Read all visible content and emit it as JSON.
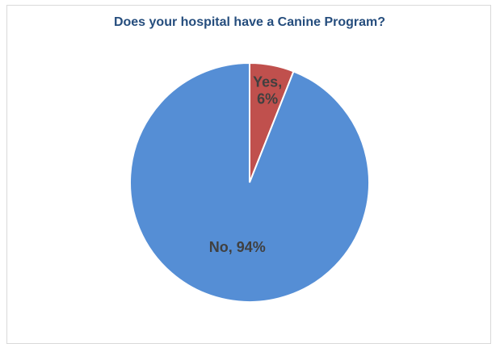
{
  "chart_data": {
    "type": "pie",
    "title": "Does your hospital have a Canine Program?",
    "categories": [
      "Yes",
      "No"
    ],
    "values": [
      6,
      94
    ],
    "unit": "%",
    "colors": [
      "#c0504d",
      "#558ed5"
    ],
    "data_labels": [
      {
        "category": "Yes",
        "line1": "Yes,",
        "line2": "6%"
      },
      {
        "category": "No",
        "line1": "No, 94%"
      }
    ],
    "legend": "none"
  }
}
